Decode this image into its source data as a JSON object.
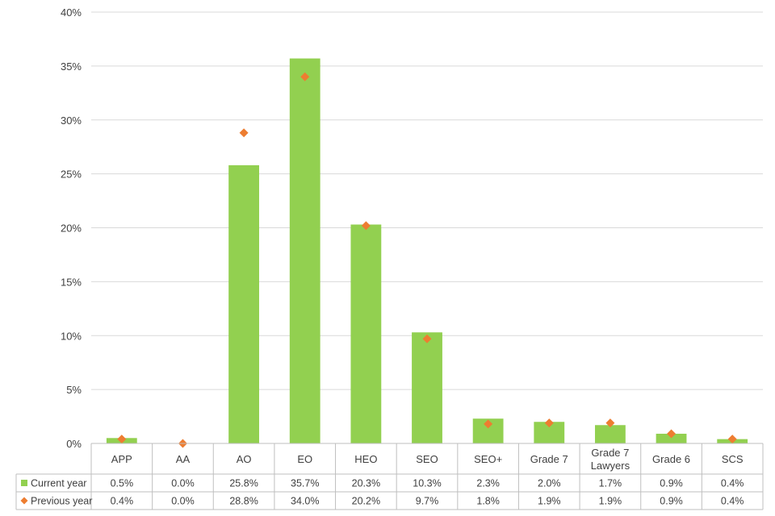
{
  "chart_data": {
    "type": "bar",
    "categories": [
      "APP",
      "AA",
      "AO",
      "EO",
      "HEO",
      "SEO",
      "SEO+",
      "Grade 7",
      "Grade 7 Lawyers",
      "Grade 6",
      "SCS"
    ],
    "category_lines": [
      [
        "APP"
      ],
      [
        "AA"
      ],
      [
        "AO"
      ],
      [
        "EO"
      ],
      [
        "HEO"
      ],
      [
        "SEO"
      ],
      [
        "SEO+"
      ],
      [
        "Grade 7"
      ],
      [
        "Grade 7",
        "Lawyers"
      ],
      [
        "Grade 6"
      ],
      [
        "SCS"
      ]
    ],
    "series": [
      {
        "name": "Current year",
        "mark": "bar",
        "color": "#92d050",
        "values": [
          0.5,
          0.0,
          25.8,
          35.7,
          20.3,
          10.3,
          2.3,
          2.0,
          1.7,
          0.9,
          0.4
        ],
        "labels": [
          "0.5%",
          "0.0%",
          "25.8%",
          "35.7%",
          "20.3%",
          "10.3%",
          "2.3%",
          "2.0%",
          "1.7%",
          "0.9%",
          "0.4%"
        ]
      },
      {
        "name": "Previous year",
        "mark": "diamond",
        "color": "#ed7d31",
        "values": [
          0.4,
          0.0,
          28.8,
          34.0,
          20.2,
          9.7,
          1.8,
          1.9,
          1.9,
          0.9,
          0.4
        ],
        "labels": [
          "0.4%",
          "0.0%",
          "28.8%",
          "34.0%",
          "20.2%",
          "9.7%",
          "1.8%",
          "1.9%",
          "1.9%",
          "0.9%",
          "0.4%"
        ]
      }
    ],
    "yticks": [
      "0%",
      "5%",
      "10%",
      "15%",
      "20%",
      "25%",
      "30%",
      "35%",
      "40%"
    ],
    "ylim": [
      0,
      40
    ],
    "grid": true,
    "legend": "data table below chart",
    "title": "",
    "xlabel": "",
    "ylabel": ""
  }
}
